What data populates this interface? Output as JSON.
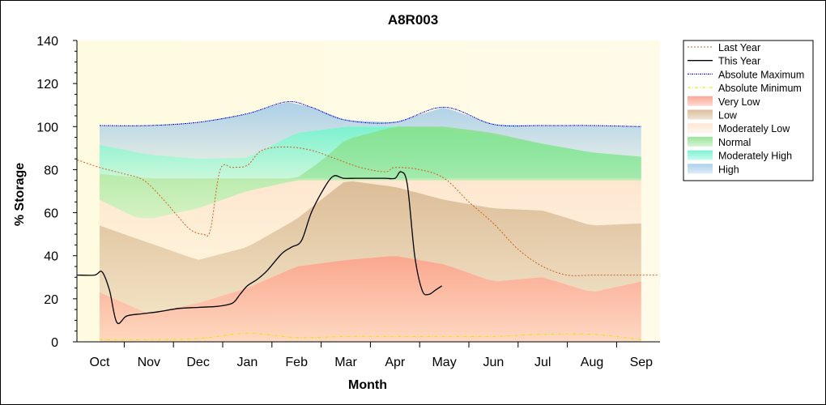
{
  "chart_data": {
    "type": "area",
    "title": "A8R003",
    "xlabel": "Month",
    "ylabel": "% Storage",
    "ylim": [
      0,
      140
    ],
    "yticks": [
      0,
      20,
      40,
      60,
      80,
      100,
      120,
      140
    ],
    "xticks": [
      "Oct",
      "Nov",
      "Dec",
      "Jan",
      "Feb",
      "Mar",
      "Apr",
      "May",
      "Jun",
      "Jul",
      "Aug",
      "Sep"
    ],
    "legend_position": "right",
    "x_start_date": "2011-10-01",
    "bands": [
      {
        "name": "High",
        "color": "#9ec8e8",
        "lower": [
          [
            0,
            91.5
          ],
          [
            1,
            87
          ],
          [
            2,
            85
          ],
          [
            3,
            85.5
          ],
          [
            4,
            97
          ],
          [
            5,
            100
          ],
          [
            6,
            100
          ],
          [
            7,
            99
          ],
          [
            8,
            96
          ],
          [
            9,
            92
          ],
          [
            10,
            88
          ],
          [
            11,
            86
          ]
        ],
        "upper": [
          [
            0,
            100.5
          ],
          [
            1,
            100.5
          ],
          [
            2,
            102
          ],
          [
            3,
            106
          ],
          [
            3.8,
            111.5
          ],
          [
            4.3,
            109
          ],
          [
            5,
            103
          ],
          [
            6,
            102
          ],
          [
            7,
            109
          ],
          [
            8,
            101
          ],
          [
            9,
            100.5
          ],
          [
            10,
            100.5
          ],
          [
            11,
            100
          ]
        ]
      },
      {
        "name": "Moderately High",
        "color": "#66f0cc",
        "lower": [
          [
            0,
            78
          ],
          [
            1,
            76
          ],
          [
            2,
            76
          ],
          [
            3,
            76
          ],
          [
            4,
            76
          ],
          [
            5,
            76
          ],
          [
            6,
            76
          ],
          [
            7,
            76
          ],
          [
            8,
            76
          ],
          [
            9,
            76
          ],
          [
            10,
            76
          ],
          [
            11,
            76
          ]
        ],
        "upper": [
          [
            0,
            91.5
          ],
          [
            1,
            87
          ],
          [
            2,
            85
          ],
          [
            3,
            85.5
          ],
          [
            4,
            97
          ],
          [
            5,
            100
          ],
          [
            6,
            100
          ],
          [
            7,
            99
          ],
          [
            8,
            96
          ],
          [
            9,
            92
          ],
          [
            10,
            88
          ],
          [
            11,
            86
          ]
        ]
      },
      {
        "name": "Normal",
        "color": "#88e088",
        "lower": [
          [
            0,
            66
          ],
          [
            0.7,
            58
          ],
          [
            1,
            57
          ],
          [
            2,
            62
          ],
          [
            3,
            70
          ],
          [
            4,
            75
          ],
          [
            5,
            75
          ],
          [
            6,
            75
          ],
          [
            7,
            75
          ],
          [
            8,
            75
          ],
          [
            9,
            75
          ],
          [
            10,
            75
          ],
          [
            11,
            75
          ]
        ],
        "upper": [
          [
            0,
            78
          ],
          [
            1,
            76
          ],
          [
            2,
            76
          ],
          [
            3,
            76
          ],
          [
            4,
            76
          ],
          [
            4.5,
            84
          ],
          [
            5,
            94
          ],
          [
            6,
            100
          ],
          [
            7,
            100
          ],
          [
            8,
            97
          ],
          [
            9,
            92
          ],
          [
            10,
            88
          ],
          [
            11,
            86
          ]
        ]
      },
      {
        "name": "Moderately Low",
        "color": "#fde3cc",
        "lower": [
          [
            0,
            54
          ],
          [
            1,
            46
          ],
          [
            2,
            38
          ],
          [
            3,
            44
          ],
          [
            4,
            57
          ],
          [
            5,
            75
          ],
          [
            6,
            72
          ],
          [
            7,
            66
          ],
          [
            8,
            62
          ],
          [
            9,
            61
          ],
          [
            10,
            54
          ],
          [
            11,
            55
          ]
        ],
        "upper": [
          [
            0,
            66
          ],
          [
            0.7,
            58
          ],
          [
            1,
            57
          ],
          [
            2,
            62
          ],
          [
            3,
            70
          ],
          [
            4,
            75
          ],
          [
            5,
            75
          ],
          [
            6,
            75
          ],
          [
            7,
            75
          ],
          [
            8,
            75
          ],
          [
            9,
            75
          ],
          [
            10,
            75
          ],
          [
            11,
            75
          ]
        ]
      },
      {
        "name": "Low",
        "color": "#d6b28a",
        "lower": [
          [
            0,
            23
          ],
          [
            1,
            13
          ],
          [
            2,
            18
          ],
          [
            3,
            25
          ],
          [
            4,
            35
          ],
          [
            5,
            38
          ],
          [
            6,
            40
          ],
          [
            7,
            36
          ],
          [
            8,
            28
          ],
          [
            9,
            30
          ],
          [
            10,
            23
          ],
          [
            11,
            28
          ]
        ],
        "upper": [
          [
            0,
            54
          ],
          [
            1,
            46
          ],
          [
            2,
            38
          ],
          [
            3,
            44
          ],
          [
            4,
            57
          ],
          [
            5,
            75
          ],
          [
            6,
            72
          ],
          [
            7,
            66
          ],
          [
            8,
            62
          ],
          [
            9,
            61
          ],
          [
            10,
            54
          ],
          [
            11,
            55
          ]
        ]
      },
      {
        "name": "Very Low",
        "color": "#fa9880",
        "lower": [
          [
            0,
            0
          ],
          [
            11,
            0
          ]
        ],
        "upper": [
          [
            0,
            23
          ],
          [
            1,
            13
          ],
          [
            2,
            18
          ],
          [
            3,
            25
          ],
          [
            4,
            35
          ],
          [
            5,
            38
          ],
          [
            6,
            40
          ],
          [
            7,
            36
          ],
          [
            8,
            28
          ],
          [
            9,
            30
          ],
          [
            10,
            23
          ],
          [
            11,
            28
          ]
        ]
      }
    ],
    "series": [
      {
        "name": "Absolute Maximum",
        "color": "#0000cc",
        "dash": "2,1,1,1",
        "points": [
          [
            0,
            100.5
          ],
          [
            1,
            100.5
          ],
          [
            2,
            102
          ],
          [
            3,
            106
          ],
          [
            3.8,
            111.5
          ],
          [
            4.3,
            109
          ],
          [
            5,
            103
          ],
          [
            6,
            102
          ],
          [
            7,
            109
          ],
          [
            8,
            101
          ],
          [
            9,
            100.5
          ],
          [
            10,
            100.5
          ],
          [
            11,
            100
          ]
        ]
      },
      {
        "name": "Absolute Minimum",
        "color": "#e6e600",
        "dash": "4,2,1,2",
        "points": [
          [
            0,
            1
          ],
          [
            1,
            1
          ],
          [
            2,
            1.5
          ],
          [
            3,
            4
          ],
          [
            4,
            2
          ],
          [
            5,
            2.5
          ],
          [
            6,
            2.5
          ],
          [
            7,
            2.5
          ],
          [
            8,
            2.5
          ],
          [
            9,
            3.5
          ],
          [
            10,
            3.5
          ],
          [
            11,
            1
          ]
        ]
      },
      {
        "name": "Last Year",
        "color": "#d06020",
        "dash": "2,2",
        "points": [
          [
            -0.45,
            84.5
          ],
          [
            0,
            81
          ],
          [
            0.5,
            78
          ],
          [
            0.9,
            75
          ],
          [
            1.3,
            66
          ],
          [
            1.6,
            58
          ],
          [
            1.85,
            52
          ],
          [
            2.1,
            50
          ],
          [
            2.25,
            52
          ],
          [
            2.45,
            80
          ],
          [
            2.7,
            81
          ],
          [
            3,
            82
          ],
          [
            3.3,
            89
          ],
          [
            3.8,
            90.5
          ],
          [
            4.3,
            89
          ],
          [
            4.8,
            85
          ],
          [
            5.3,
            81
          ],
          [
            5.8,
            79
          ],
          [
            6.0,
            81
          ],
          [
            6.5,
            80
          ],
          [
            7.0,
            76
          ],
          [
            7.5,
            65
          ],
          [
            8,
            55
          ],
          [
            8.5,
            43
          ],
          [
            9,
            35
          ],
          [
            9.5,
            31
          ],
          [
            10,
            31
          ],
          [
            10.5,
            31
          ],
          [
            11,
            31
          ],
          [
            11.35,
            31
          ]
        ]
      },
      {
        "name": "This Year",
        "color": "#000000",
        "dash": "",
        "points": [
          [
            -0.45,
            31
          ],
          [
            -0.1,
            31
          ],
          [
            0.05,
            32.5
          ],
          [
            0.2,
            24
          ],
          [
            0.35,
            9
          ],
          [
            0.55,
            12
          ],
          [
            0.85,
            13
          ],
          [
            1.2,
            14
          ],
          [
            1.6,
            15.5
          ],
          [
            2,
            16
          ],
          [
            2.4,
            16.5
          ],
          [
            2.7,
            18
          ],
          [
            2.85,
            22
          ],
          [
            3.0,
            26
          ],
          [
            3.2,
            29
          ],
          [
            3.4,
            33
          ],
          [
            3.7,
            41
          ],
          [
            3.9,
            44
          ],
          [
            4.1,
            47
          ],
          [
            4.3,
            60
          ],
          [
            4.55,
            71
          ],
          [
            4.75,
            77
          ],
          [
            4.95,
            76
          ],
          [
            5.2,
            76
          ],
          [
            5.5,
            76
          ],
          [
            5.8,
            76
          ],
          [
            6.0,
            76
          ],
          [
            6.12,
            79
          ],
          [
            6.25,
            73
          ],
          [
            6.4,
            40
          ],
          [
            6.55,
            24
          ],
          [
            6.68,
            22
          ],
          [
            6.82,
            24
          ],
          [
            6.95,
            26
          ]
        ]
      }
    ],
    "legend": [
      "Last Year",
      "This Year",
      "Absolute Maximum",
      "Absolute Minimum",
      "Very Low",
      "Low",
      "Moderately Low",
      "Normal",
      "Moderately High",
      "High"
    ]
  }
}
